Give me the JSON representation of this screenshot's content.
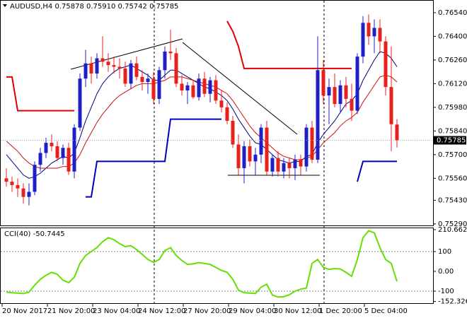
{
  "chart_data": [
    {
      "type": "candlestick",
      "title": "AUDUSD,H4",
      "last_bar_labels": [
        "0.75878",
        "0.75910",
        "0.75742",
        "0.75785"
      ],
      "categories": [
        "20 Nov 2017",
        null,
        null,
        null,
        null,
        null,
        null,
        null,
        "21 Nov 20:00",
        null,
        null,
        null,
        null,
        null,
        null,
        null,
        "23 Nov 04:00",
        null,
        null,
        null,
        null,
        null,
        null,
        null,
        "24 Nov 12:00",
        null,
        null,
        null,
        null,
        null,
        null,
        null,
        "27 Nov 20:00",
        null,
        null,
        null,
        null,
        null,
        null,
        null,
        "29 Nov 04:00",
        null,
        null,
        null,
        null,
        null,
        null,
        null,
        "30 Nov 12:00",
        null,
        null,
        null,
        null,
        null,
        null,
        null,
        "1 Dec 20:00",
        null,
        null,
        null,
        null,
        null,
        null,
        null,
        "5 Dec 04:00",
        null,
        null,
        null,
        null,
        null
      ],
      "open": [
        0.7556,
        0.7554,
        0.7552,
        0.755,
        0.7545,
        0.7548,
        0.7564,
        0.7571,
        0.7577,
        0.7575,
        0.7568,
        0.7574,
        0.756,
        0.7586,
        0.7615,
        0.7624,
        0.7618,
        0.7627,
        0.7625,
        0.7623,
        0.7622,
        0.7621,
        0.7612,
        0.7624,
        0.7616,
        0.7613,
        0.7615,
        0.7603,
        0.762,
        0.7631,
        0.763,
        0.7612,
        0.7608,
        0.7611,
        0.7604,
        0.7615,
        0.7606,
        0.7614,
        0.7602,
        0.7598,
        0.759,
        0.7576,
        0.7562,
        0.7575,
        0.7566,
        0.757,
        0.7586,
        0.756,
        0.7568,
        0.756,
        0.7565,
        0.7562,
        0.7567,
        0.7563,
        0.7586,
        0.7567,
        0.762,
        0.7605,
        0.761,
        0.76,
        0.7611,
        0.7603,
        0.7596,
        0.7628,
        0.7648,
        0.764,
        0.7645,
        0.7637,
        0.761,
        0.75878
      ],
      "high": [
        0.7562,
        0.7557,
        0.7556,
        0.7553,
        0.7553,
        0.7566,
        0.7574,
        0.758,
        0.7582,
        0.7578,
        0.7576,
        0.7577,
        0.7588,
        0.7618,
        0.7632,
        0.7628,
        0.763,
        0.764,
        0.763,
        0.7628,
        0.7627,
        0.7625,
        0.7626,
        0.7628,
        0.762,
        0.7618,
        0.7619,
        0.7622,
        0.7634,
        0.7644,
        0.7633,
        0.7617,
        0.7613,
        0.7614,
        0.7618,
        0.7619,
        0.7616,
        0.7617,
        0.7608,
        0.7601,
        0.7593,
        0.7582,
        0.7578,
        0.7579,
        0.7574,
        0.7588,
        0.759,
        0.757,
        0.7572,
        0.7568,
        0.7568,
        0.757,
        0.757,
        0.7588,
        0.759,
        0.764,
        0.7626,
        0.7615,
        0.7618,
        0.7614,
        0.7616,
        0.7612,
        0.763,
        0.7652,
        0.7653,
        0.765,
        0.765,
        0.764,
        0.7634,
        0.7591
      ],
      "low": [
        0.7551,
        0.7548,
        0.7545,
        0.7541,
        0.754,
        0.7546,
        0.756,
        0.7568,
        0.7572,
        0.7566,
        0.7564,
        0.7558,
        0.7556,
        0.7584,
        0.761,
        0.7612,
        0.7615,
        0.7622,
        0.7619,
        0.7618,
        0.7615,
        0.761,
        0.7609,
        0.7614,
        0.7608,
        0.7606,
        0.76,
        0.76,
        0.7615,
        0.7626,
        0.761,
        0.7605,
        0.76,
        0.7603,
        0.7602,
        0.7604,
        0.7601,
        0.76,
        0.7595,
        0.7588,
        0.7574,
        0.7558,
        0.7553,
        0.7563,
        0.7558,
        0.7565,
        0.7558,
        0.7557,
        0.7557,
        0.7556,
        0.7556,
        0.7555,
        0.7558,
        0.756,
        0.7565,
        0.7565,
        0.76,
        0.7588,
        0.7598,
        0.7595,
        0.7598,
        0.759,
        0.7594,
        0.7624,
        0.7635,
        0.763,
        0.763,
        0.7605,
        0.7572,
        0.75742
      ],
      "close": [
        0.7554,
        0.7552,
        0.755,
        0.7545,
        0.7548,
        0.7564,
        0.7571,
        0.7577,
        0.7575,
        0.7568,
        0.7574,
        0.756,
        0.7586,
        0.7615,
        0.7624,
        0.7618,
        0.7627,
        0.7625,
        0.7623,
        0.7622,
        0.7621,
        0.7612,
        0.7624,
        0.7616,
        0.7613,
        0.7615,
        0.7603,
        0.762,
        0.7631,
        0.763,
        0.7612,
        0.7608,
        0.7611,
        0.7604,
        0.7615,
        0.7606,
        0.7614,
        0.7602,
        0.7598,
        0.759,
        0.7576,
        0.7562,
        0.7575,
        0.7566,
        0.757,
        0.7586,
        0.756,
        0.7568,
        0.756,
        0.7565,
        0.7562,
        0.7567,
        0.7563,
        0.7586,
        0.7567,
        0.762,
        0.7605,
        0.761,
        0.76,
        0.7611,
        0.7603,
        0.7596,
        0.7628,
        0.7648,
        0.764,
        0.7645,
        0.7637,
        0.761,
        0.7588,
        0.75785
      ],
      "up_color": "#1f1fc8",
      "down_color": "#e8201c",
      "series": [
        {
          "color": "#000080",
          "values": [
            0.757,
            0.7566,
            0.7562,
            0.7558,
            0.7556,
            0.7557,
            0.7559,
            0.7562,
            0.7565,
            0.7567,
            0.7569,
            0.7568,
            0.7571,
            0.758,
            0.759,
            0.7598,
            0.7606,
            0.7612,
            0.7616,
            0.7619,
            0.7621,
            0.7622,
            0.7623,
            0.7621,
            0.7619,
            0.7617,
            0.7614,
            0.7614,
            0.7617,
            0.762,
            0.762,
            0.7618,
            0.7616,
            0.7614,
            0.7612,
            0.761,
            0.7609,
            0.7607,
            0.7605,
            0.7602,
            0.7597,
            0.7591,
            0.7586,
            0.7581,
            0.7577,
            0.7576,
            0.7573,
            0.757,
            0.7567,
            0.7566,
            0.7565,
            0.7566,
            0.7566,
            0.7569,
            0.757,
            0.7577,
            0.7582,
            0.7586,
            0.759,
            0.7595,
            0.76,
            0.7602,
            0.7606,
            0.7614,
            0.762,
            0.7626,
            0.7631,
            0.763,
            0.7627,
            0.7622
          ]
        },
        {
          "color": "#cc1010",
          "values": [
            0.7578,
            0.7575,
            0.7572,
            0.7568,
            0.7565,
            0.7563,
            0.7562,
            0.7562,
            0.7562,
            0.7562,
            0.7563,
            0.7563,
            0.7565,
            0.757,
            0.7577,
            0.7583,
            0.7589,
            0.7594,
            0.7598,
            0.7602,
            0.7605,
            0.7607,
            0.7609,
            0.7611,
            0.7612,
            0.7612,
            0.7612,
            0.7613,
            0.7614,
            0.7616,
            0.7616,
            0.7616,
            0.7615,
            0.7614,
            0.7613,
            0.7612,
            0.7611,
            0.761,
            0.7608,
            0.7606,
            0.7602,
            0.7597,
            0.7592,
            0.7587,
            0.7583,
            0.758,
            0.7577,
            0.7574,
            0.7571,
            0.7569,
            0.7568,
            0.7567,
            0.7567,
            0.7568,
            0.7569,
            0.7573,
            0.7577,
            0.758,
            0.7583,
            0.7587,
            0.759,
            0.7592,
            0.7595,
            0.7601,
            0.7606,
            0.7611,
            0.7616,
            0.7617,
            0.7616,
            0.7613
          ]
        },
        {
          "color": "#e00000",
          "width": 2,
          "values": [
            0.7616,
            0.7616,
            0.7596,
            0.7596,
            0.7596,
            0.7596,
            0.7596,
            0.7596,
            0.7596,
            0.7596,
            0.7596,
            0.7596,
            0.7596,
            null,
            null,
            null,
            null,
            null,
            null,
            null,
            null,
            null,
            null,
            null,
            null,
            null,
            null,
            null,
            null,
            null,
            null,
            null,
            null,
            null,
            null,
            null,
            null,
            null,
            null,
            0.7649,
            0.7643,
            0.7634,
            0.7621,
            0.7621,
            0.7621,
            0.7621,
            0.7621,
            0.7621,
            0.7621,
            0.7621,
            0.7621,
            0.7621,
            0.7621,
            0.7621,
            0.7621,
            0.7621,
            0.7621,
            0.7621,
            0.7621,
            0.7621,
            0.7621,
            0.7621,
            null,
            null,
            null,
            null,
            null,
            null,
            null,
            null
          ]
        },
        {
          "color": "#0000c0",
          "width": 2,
          "values": [
            null,
            null,
            null,
            null,
            null,
            null,
            null,
            null,
            null,
            null,
            null,
            null,
            null,
            null,
            0.7545,
            0.7545,
            0.7566,
            0.7566,
            0.7566,
            0.7566,
            0.7566,
            0.7566,
            0.7566,
            0.7566,
            0.7566,
            0.7566,
            0.7566,
            0.7566,
            0.7566,
            0.7591,
            0.7591,
            0.7591,
            0.7591,
            0.7591,
            0.7591,
            0.7591,
            0.7591,
            0.7591,
            0.7591,
            null,
            null,
            null,
            null,
            null,
            null,
            null,
            null,
            null,
            null,
            null,
            null,
            null,
            null,
            null,
            null,
            null,
            null,
            null,
            null,
            null,
            null,
            null,
            0.7554,
            0.7566,
            0.7566,
            0.7566,
            0.7566,
            0.7566,
            0.7566,
            0.7566
          ]
        }
      ],
      "ylim": [
        0.75277,
        0.76615
      ],
      "yticks": [
        {
          "value": 0.7654,
          "label": "0.76540"
        },
        {
          "value": 0.764,
          "label": "0.76400"
        },
        {
          "value": 0.7626,
          "label": "0.76260"
        },
        {
          "value": 0.7612,
          "label": "0.76120"
        },
        {
          "value": 0.7598,
          "label": "0.75980"
        },
        {
          "value": 0.7584,
          "label": "0.75840"
        },
        {
          "value": 0.757,
          "label": "0.75700"
        },
        {
          "value": 0.7556,
          "label": "0.75560"
        },
        {
          "value": 0.7543,
          "label": "0.75430"
        },
        {
          "value": 0.7529,
          "label": "0.75290"
        }
      ]
    },
    {
      "type": "line",
      "title": "CCI(40)",
      "color": "#66e000",
      "values": [
        -105,
        -108,
        -110,
        -112,
        -105,
        -70,
        -40,
        -20,
        -5,
        -15,
        -45,
        -57,
        -30,
        40,
        80,
        100,
        120,
        150,
        170,
        160,
        140,
        125,
        130,
        110,
        86,
        60,
        45,
        60,
        105,
        120,
        80,
        55,
        35,
        38,
        44,
        40,
        35,
        20,
        5,
        -5,
        -40,
        -95,
        -108,
        -110,
        -112,
        -80,
        -65,
        -120,
        -130,
        -128,
        -118,
        -100,
        -90,
        -85,
        40,
        60,
        20,
        10,
        14,
        12,
        -5,
        -25,
        60,
        170,
        205,
        195,
        120,
        60,
        40,
        -50.7445
      ],
      "ylim": [
        -164.3,
        221.4
      ],
      "yticks": [
        210.6629,
        100,
        {
          "value": 0,
          "label": "0.00"
        },
        -100,
        -152.3266
      ]
    }
  ]
}
